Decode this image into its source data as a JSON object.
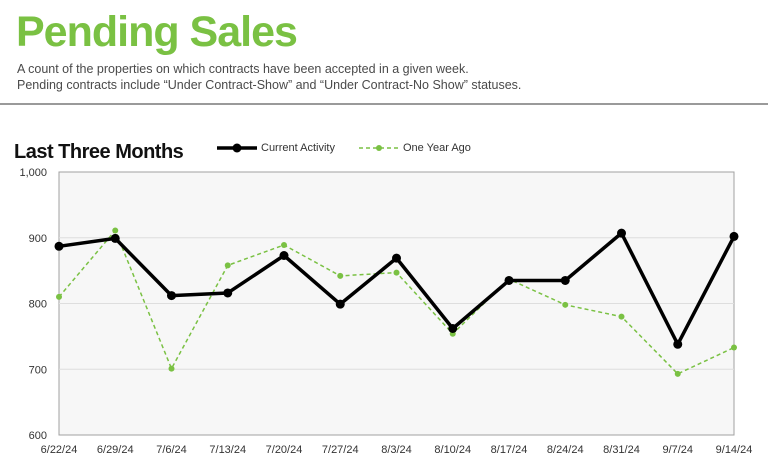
{
  "header": {
    "title": "Pending Sales",
    "subtitle_line1": "A count of the properties on which contracts have been accepted in a given week.",
    "subtitle_line2": "Pending contracts include “Under Contract-Show” and “Under Contract-No Show” statuses."
  },
  "section": {
    "title": "Last Three Months"
  },
  "colors": {
    "accent": "#7ac143",
    "current": "#000000",
    "plot_bg": "#f7f7f7"
  },
  "chart_data": {
    "type": "line",
    "title": "Last Three Months",
    "xlabel": "",
    "ylabel": "",
    "ylim": [
      600,
      1000
    ],
    "yticks": [
      600,
      700,
      800,
      900,
      1000
    ],
    "ytick_labels": [
      "600",
      "700",
      "800",
      "900",
      "1,000"
    ],
    "grid": true,
    "legend_position": "top",
    "categories": [
      "6/22/24",
      "6/29/24",
      "7/6/24",
      "7/13/24",
      "7/20/24",
      "7/27/24",
      "8/3/24",
      "8/10/24",
      "8/17/24",
      "8/24/24",
      "8/31/24",
      "9/7/24",
      "9/14/24"
    ],
    "series": [
      {
        "name": "Current Activity",
        "style": "solid",
        "color": "#000000",
        "values": [
          887,
          899,
          812,
          816,
          873,
          799,
          869,
          762,
          835,
          835,
          907,
          738,
          902
        ]
      },
      {
        "name": "One Year Ago",
        "style": "dashed",
        "color": "#7ac143",
        "values": [
          810,
          911,
          701,
          858,
          889,
          842,
          847,
          754,
          837,
          798,
          780,
          693,
          733
        ]
      }
    ]
  }
}
